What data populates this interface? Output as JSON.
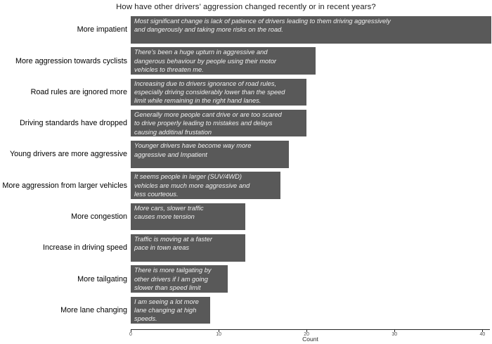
{
  "title": "How have other drivers’ aggression changed recently or in recent years?",
  "chart_data": {
    "type": "bar",
    "orientation": "horizontal",
    "title": "How have other drivers’ aggression changed recently or in recent years?",
    "xlabel": "Count",
    "ylabel": "",
    "xlim": [
      0,
      41
    ],
    "x_ticks": [
      0,
      10,
      20,
      30,
      40
    ],
    "grid": false,
    "legend": false,
    "bar_color": "#595959",
    "quote_text_color": "#f0f0f0",
    "categories": [
      "More impatient",
      "More aggression towards cyclists",
      "Road rules are ignored more",
      "Driving standards have dropped",
      "Young drivers are more aggressive",
      "More aggression from larger vehicles",
      "More congestion",
      "Increase in driving speed",
      "More tailgating",
      "More lane changing"
    ],
    "values": [
      41,
      21,
      20,
      20,
      18,
      17,
      13,
      13,
      11,
      9
    ],
    "rows": [
      {
        "category": "More impatient",
        "value": 41,
        "quote": "Most significant change is lack of patience of drivers leading to them driving aggressively\nand dangerously and taking more risks on the road."
      },
      {
        "category": "More aggression towards cyclists",
        "value": 21,
        "quote": "There’s been a huge upturn in aggressive and\ndangerous behaviour by people using their motor\nvehicles to threaten me."
      },
      {
        "category": "Road rules are ignored more",
        "value": 20,
        "quote": "Increasing due to drivers ignorance of road rules,\nespecially driving considerably lower than the speed\nlimit while remaining in the right hand lanes."
      },
      {
        "category": "Driving standards have dropped",
        "value": 20,
        "quote": "Generally more people cant drive or are too scared\nto drive properly leading to mistakes and delays\ncausing additinal frustation"
      },
      {
        "category": "Young drivers are more aggressive",
        "value": 18,
        "quote": "Younger drivers have become way more\naggressive and Impatient"
      },
      {
        "category": "More aggression from larger vehicles",
        "value": 17,
        "quote": "It seems people in larger (SUV/4WD)\nvehicles are much more aggressive and\nless courteous."
      },
      {
        "category": "More congestion",
        "value": 13,
        "quote": "More cars, slower traffic\ncauses more tension"
      },
      {
        "category": "Increase in driving speed",
        "value": 13,
        "quote": "Traffic is moving at a faster\npace in town areas"
      },
      {
        "category": "More tailgating",
        "value": 11,
        "quote": "There is more tailgating by\nother drivers if I am going\nslower than speed limit"
      },
      {
        "category": "More lane changing",
        "value": 9,
        "quote": "I am seeing a lot more\nlane changing at high\nspeeds."
      }
    ]
  }
}
